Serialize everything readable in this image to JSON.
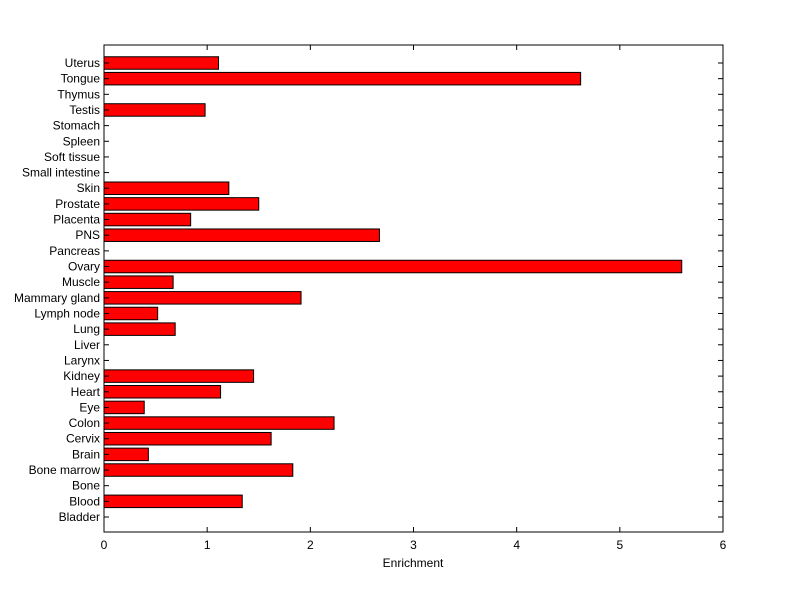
{
  "chart_data": {
    "type": "bar",
    "orientation": "horizontal",
    "title": "",
    "xlabel": "Enrichment",
    "ylabel": "",
    "xlim": [
      0,
      6
    ],
    "xticks": [
      0,
      1,
      2,
      3,
      4,
      5,
      6
    ],
    "grid": false,
    "bar_color": "#ff0000",
    "bar_edge_color": "#000000",
    "categories": [
      "Bladder",
      "Blood",
      "Bone",
      "Bone marrow",
      "Brain",
      "Cervix",
      "Colon",
      "Eye",
      "Heart",
      "Kidney",
      "Larynx",
      "Liver",
      "Lung",
      "Lymph node",
      "Mammary gland",
      "Muscle",
      "Ovary",
      "Pancreas",
      "PNS",
      "Placenta",
      "Prostate",
      "Skin",
      "Small intestine",
      "Soft tissue",
      "Spleen",
      "Stomach",
      "Testis",
      "Thymus",
      "Tongue",
      "Uterus"
    ],
    "values": [
      0,
      1.34,
      0,
      1.83,
      0.43,
      1.62,
      2.23,
      0.39,
      1.13,
      1.45,
      0,
      0,
      0.69,
      0.52,
      1.91,
      0.67,
      5.6,
      0,
      2.67,
      0.84,
      1.5,
      1.21,
      0,
      0,
      0,
      0,
      0.98,
      0,
      4.62,
      1.11
    ]
  }
}
